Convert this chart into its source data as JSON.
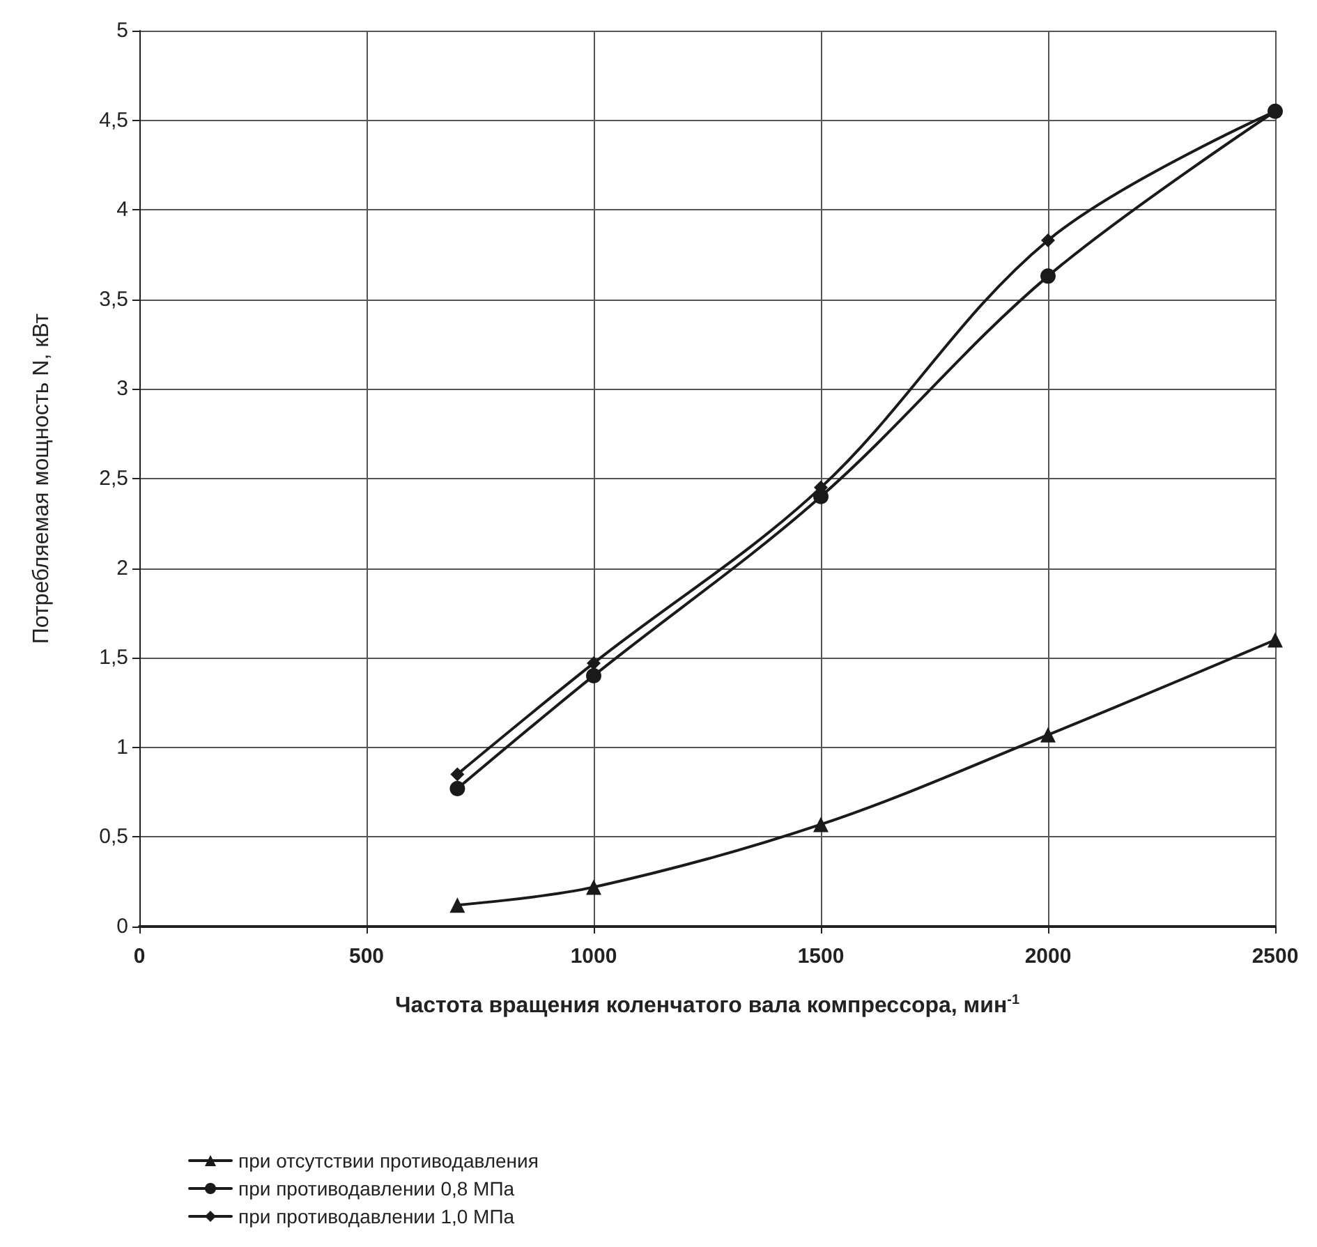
{
  "chart_data": {
    "type": "line",
    "xlabel": "Частота вращения коленчатого вала компрессора, мин$^{-1}$",
    "ylabel": "Потребляемая мощность N, кВт",
    "x": [
      700,
      1000,
      1500,
      2000,
      2500
    ],
    "series": [
      {
        "name": "при отсутствии противодавления",
        "color": "#1a1a1a",
        "marker": "triangle",
        "values": [
          0.12,
          0.22,
          0.57,
          1.07,
          1.6
        ]
      },
      {
        "name": "при противодавлении 0,8 МПа",
        "color": "#1a1a1a",
        "marker": "circle",
        "values": [
          0.77,
          1.4,
          2.4,
          3.63,
          4.55
        ]
      },
      {
        "name": "при противодавлении 1,0 МПа",
        "color": "#1a1a1a",
        "marker": "diamond",
        "values": [
          0.85,
          1.47,
          2.45,
          3.83,
          4.55
        ]
      }
    ],
    "xlim": [
      0,
      2500
    ],
    "xticks": [
      0,
      500,
      1000,
      1500,
      2000,
      2500
    ],
    "ylim": [
      0,
      5
    ],
    "yticks": [
      0,
      {
        "value": 0.5,
        "label": "0,5"
      },
      1,
      {
        "value": 1.5,
        "label": "1,5"
      },
      2,
      {
        "value": 2.5,
        "label": "2,5"
      },
      3,
      {
        "value": 3.5,
        "label": "3,5"
      },
      4,
      {
        "value": 4.5,
        "label": "4,5"
      },
      5
    ],
    "grid": true,
    "legend": "bottom left",
    "line_style": "solid"
  }
}
